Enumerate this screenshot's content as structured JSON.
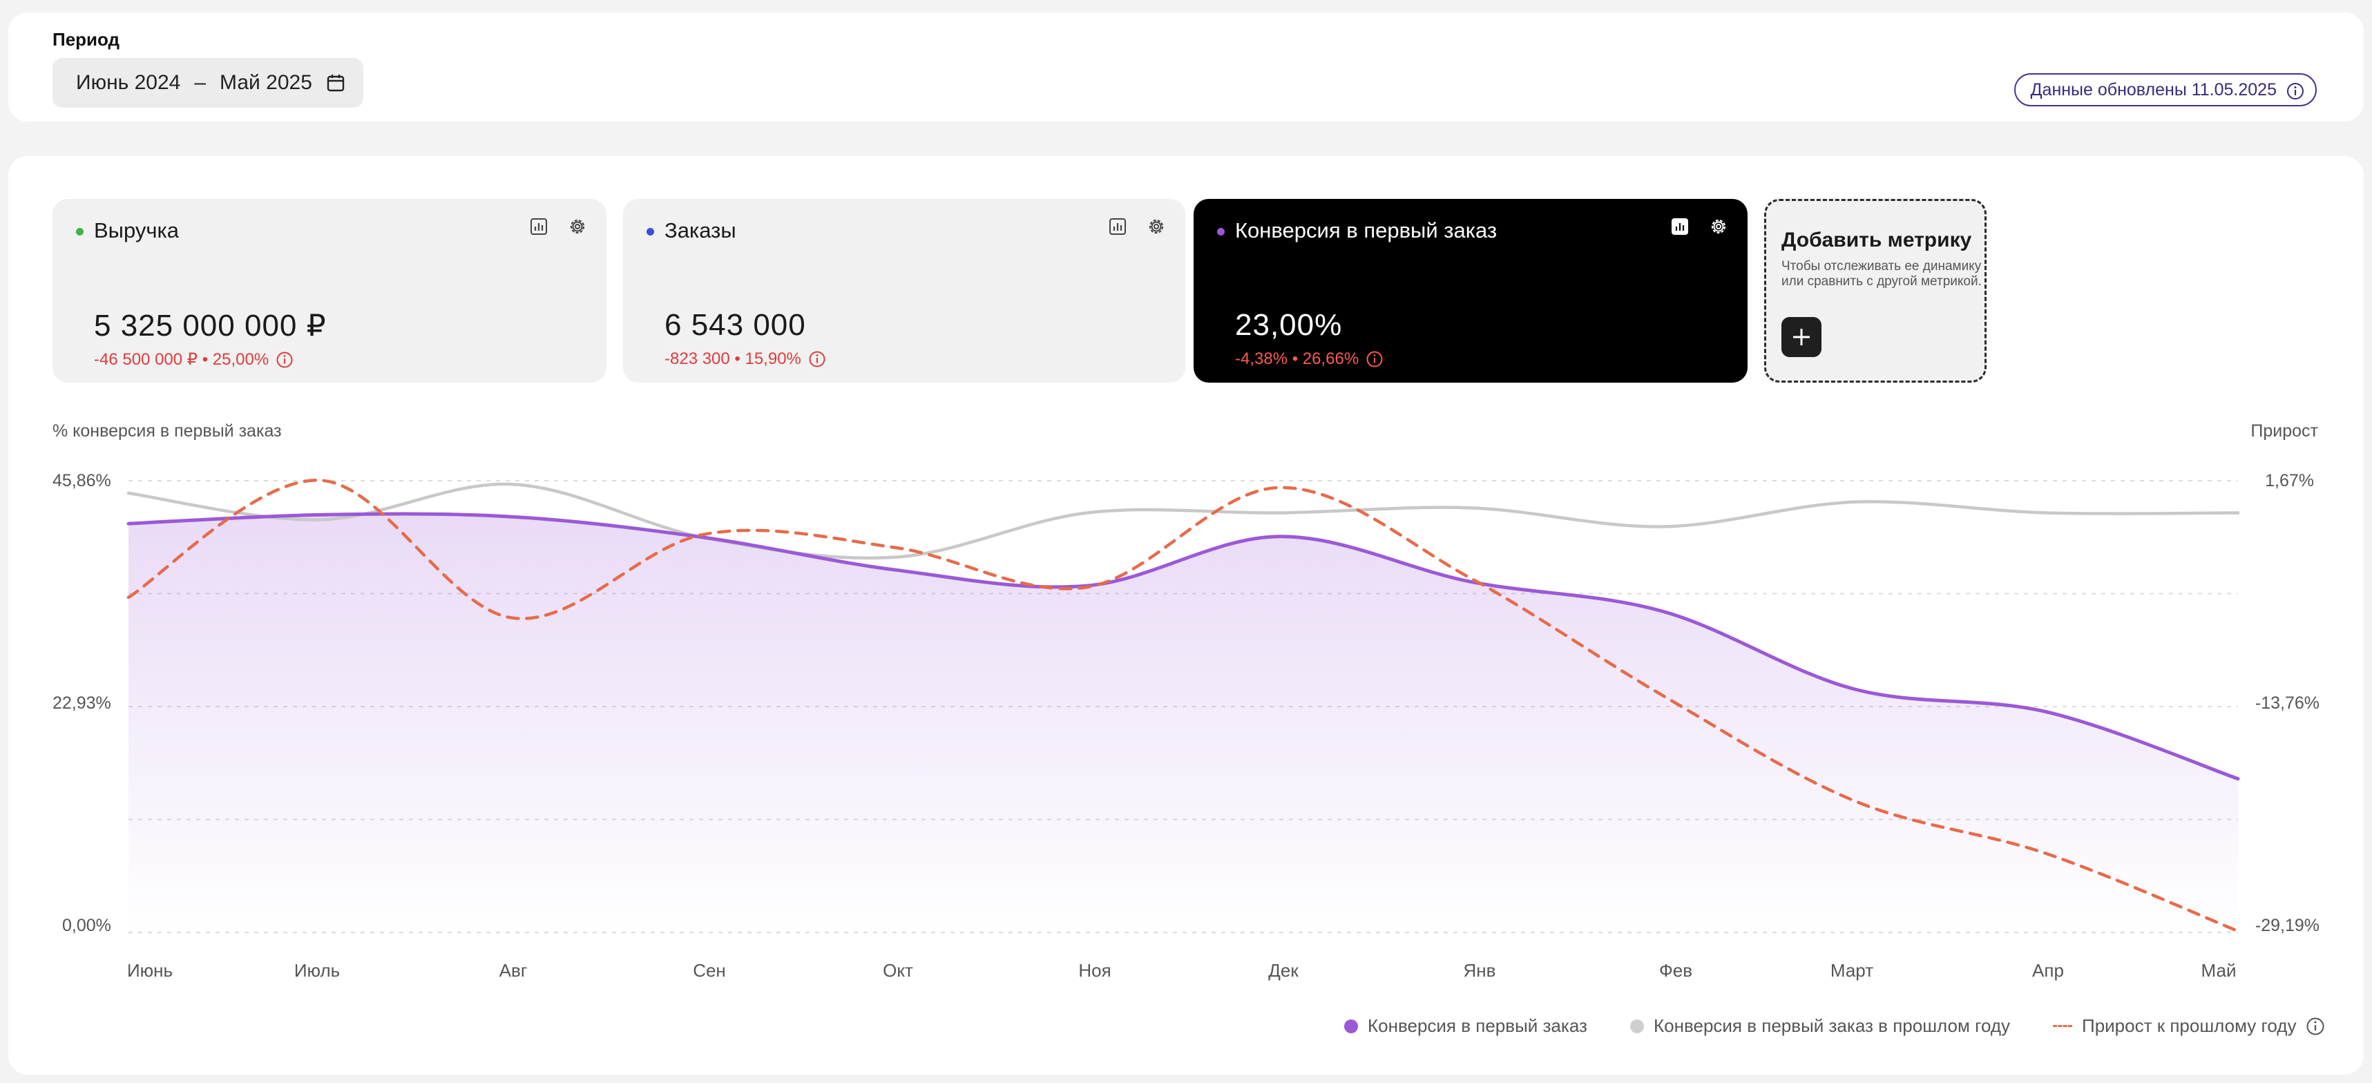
{
  "period": {
    "label": "Период",
    "from": "Июнь 2024",
    "separator": "–",
    "to": "Май 2025"
  },
  "updated_badge": "Данные обновлены 11.05.2025",
  "metrics": [
    {
      "title": "Выручка",
      "value": "5 325 000 000 ₽",
      "delta": "-46 500 000 ₽ • 25,00%",
      "dot_color": "#3cb44b",
      "active": false
    },
    {
      "title": "Заказы",
      "value": "6 543 000",
      "delta": "-823 300 • 15,90%",
      "dot_color": "#3b4fd8",
      "active": false
    },
    {
      "title": "Конверсия в первый заказ",
      "value": "23,00%",
      "delta": "-4,38% • 26,66%",
      "dot_color": "#9b59d6",
      "active": true
    }
  ],
  "add_metric": {
    "title": "Добавить метрику",
    "description": "Чтобы отслеживать ее динамику или сравнить с другой метрикой."
  },
  "colors": {
    "accent_purple": "#9b59d6",
    "previous_gray": "#c8c8c8",
    "growth_orange": "#e66b4a",
    "negative_red": "#e03b3b"
  },
  "chart_data": {
    "type": "line",
    "ylabel_left": "% конверсия в первый заказ",
    "ylabel_right": "Прирост",
    "left_ticks": [
      "45,86%",
      "22,93%",
      "0,00%"
    ],
    "right_ticks": [
      "1,67%",
      "-13,76%",
      "-29,19%"
    ],
    "ylim_left": [
      0,
      45.86
    ],
    "ylim_right": [
      -29.19,
      1.67
    ],
    "grid": "dashed",
    "categories": [
      "Июнь",
      "Июль",
      "Авг",
      "Сен",
      "Окт",
      "Ноя",
      "Дек",
      "Янв",
      "Фев",
      "Март",
      "Апр",
      "Май"
    ],
    "series": [
      {
        "name": "Конверсия в первый заказ",
        "axis": "left",
        "style": "area",
        "color": "#9b59d6",
        "values": [
          41.5,
          42.4,
          42.2,
          40.1,
          36.8,
          35.2,
          40.2,
          35.6,
          32.6,
          24.7,
          22.4,
          15.6
        ]
      },
      {
        "name": "Конверсия в первый заказ в прошлом году",
        "axis": "left",
        "style": "line",
        "color": "#c8c8c8",
        "values": [
          44.6,
          41.9,
          45.5,
          40.1,
          38.1,
          42.6,
          42.6,
          43.1,
          41.2,
          43.7,
          42.6,
          42.6
        ]
      },
      {
        "name": "Прирост к прошлому году",
        "axis": "right",
        "style": "dashed",
        "color": "#e66b4a",
        "values": [
          -6.3,
          1.7,
          -7.7,
          -2.0,
          -2.9,
          -5.6,
          1.2,
          -5.0,
          -13.0,
          -20.2,
          -23.8,
          -29.1
        ]
      }
    ],
    "legend_position": "bottom-right"
  }
}
